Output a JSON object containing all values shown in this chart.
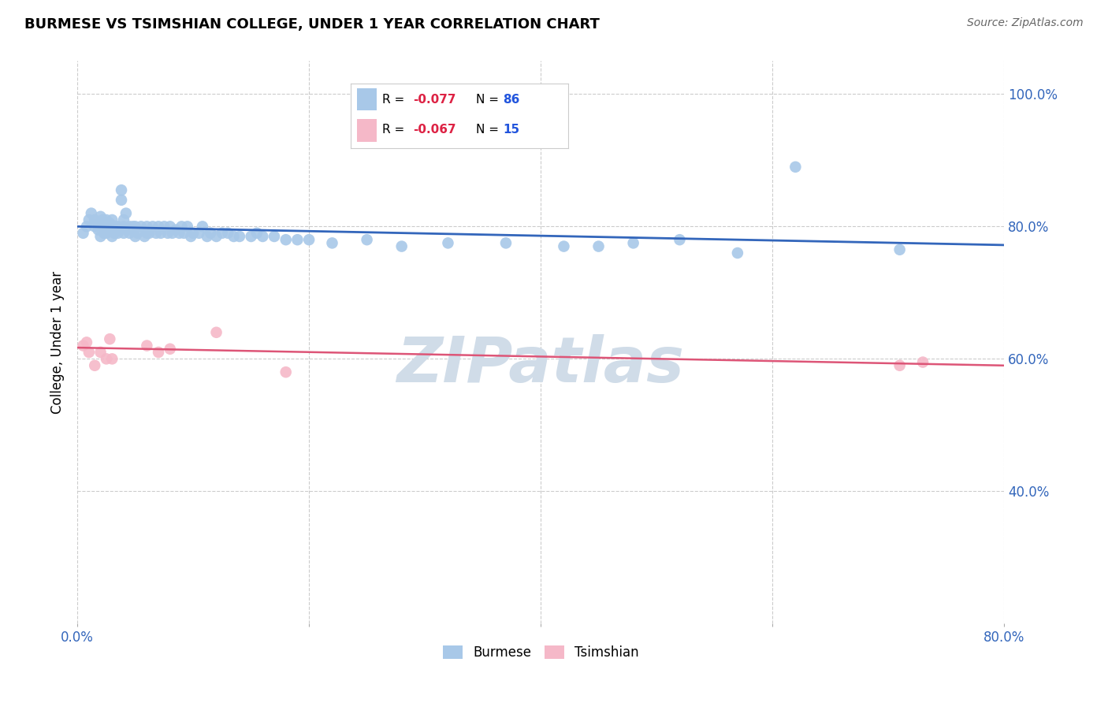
{
  "title": "BURMESE VS TSIMSHIAN COLLEGE, UNDER 1 YEAR CORRELATION CHART",
  "source": "Source: ZipAtlas.com",
  "ylabel": "College, Under 1 year",
  "xlim": [
    0.0,
    0.8
  ],
  "ylim": [
    0.2,
    1.05
  ],
  "xtick_positions": [
    0.0,
    0.2,
    0.4,
    0.6,
    0.8
  ],
  "xticklabels": [
    "0.0%",
    "",
    "",
    "",
    "80.0%"
  ],
  "ytick_positions": [
    0.4,
    0.6,
    0.8,
    1.0
  ],
  "yticklabels": [
    "40.0%",
    "60.0%",
    "80.0%",
    "100.0%"
  ],
  "burmese_R": -0.077,
  "burmese_N": 86,
  "tsimshian_R": -0.067,
  "tsimshian_N": 15,
  "burmese_color": "#a8c8e8",
  "tsimshian_color": "#f5b8c8",
  "burmese_line_color": "#3366bb",
  "tsimshian_line_color": "#dd5577",
  "r_color": "#dd2244",
  "n_color": "#2255dd",
  "watermark": "ZIPatlas",
  "watermark_color": "#d0dce8",
  "burmese_x": [
    0.005,
    0.008,
    0.01,
    0.012,
    0.015,
    0.015,
    0.018,
    0.018,
    0.02,
    0.02,
    0.022,
    0.022,
    0.023,
    0.025,
    0.025,
    0.025,
    0.028,
    0.028,
    0.03,
    0.03,
    0.03,
    0.032,
    0.033,
    0.035,
    0.035,
    0.038,
    0.038,
    0.04,
    0.04,
    0.04,
    0.042,
    0.043,
    0.045,
    0.045,
    0.048,
    0.05,
    0.05,
    0.052,
    0.055,
    0.058,
    0.06,
    0.06,
    0.062,
    0.065,
    0.068,
    0.07,
    0.072,
    0.075,
    0.078,
    0.08,
    0.082,
    0.085,
    0.088,
    0.09,
    0.092,
    0.095,
    0.098,
    0.1,
    0.105,
    0.108,
    0.112,
    0.115,
    0.12,
    0.125,
    0.13,
    0.135,
    0.14,
    0.15,
    0.155,
    0.16,
    0.17,
    0.18,
    0.19,
    0.2,
    0.22,
    0.25,
    0.28,
    0.32,
    0.37,
    0.42,
    0.45,
    0.48,
    0.52,
    0.57,
    0.62,
    0.71
  ],
  "burmese_y": [
    0.79,
    0.8,
    0.81,
    0.82,
    0.8,
    0.81,
    0.795,
    0.805,
    0.785,
    0.815,
    0.8,
    0.81,
    0.79,
    0.79,
    0.8,
    0.81,
    0.795,
    0.805,
    0.785,
    0.8,
    0.81,
    0.79,
    0.8,
    0.79,
    0.8,
    0.84,
    0.855,
    0.79,
    0.8,
    0.81,
    0.82,
    0.795,
    0.79,
    0.8,
    0.8,
    0.785,
    0.8,
    0.79,
    0.8,
    0.785,
    0.79,
    0.8,
    0.79,
    0.8,
    0.79,
    0.8,
    0.79,
    0.8,
    0.79,
    0.8,
    0.79,
    0.795,
    0.79,
    0.8,
    0.79,
    0.8,
    0.785,
    0.79,
    0.79,
    0.8,
    0.785,
    0.79,
    0.785,
    0.79,
    0.79,
    0.785,
    0.785,
    0.785,
    0.79,
    0.785,
    0.785,
    0.78,
    0.78,
    0.78,
    0.775,
    0.78,
    0.77,
    0.775,
    0.775,
    0.77,
    0.77,
    0.775,
    0.78,
    0.76,
    0.89,
    0.765
  ],
  "tsimshian_x": [
    0.005,
    0.008,
    0.01,
    0.015,
    0.02,
    0.025,
    0.028,
    0.03,
    0.06,
    0.07,
    0.08,
    0.12,
    0.18,
    0.71,
    0.73
  ],
  "tsimshian_y": [
    0.62,
    0.625,
    0.61,
    0.59,
    0.61,
    0.6,
    0.63,
    0.6,
    0.62,
    0.61,
    0.615,
    0.64,
    0.58,
    0.59,
    0.595
  ]
}
